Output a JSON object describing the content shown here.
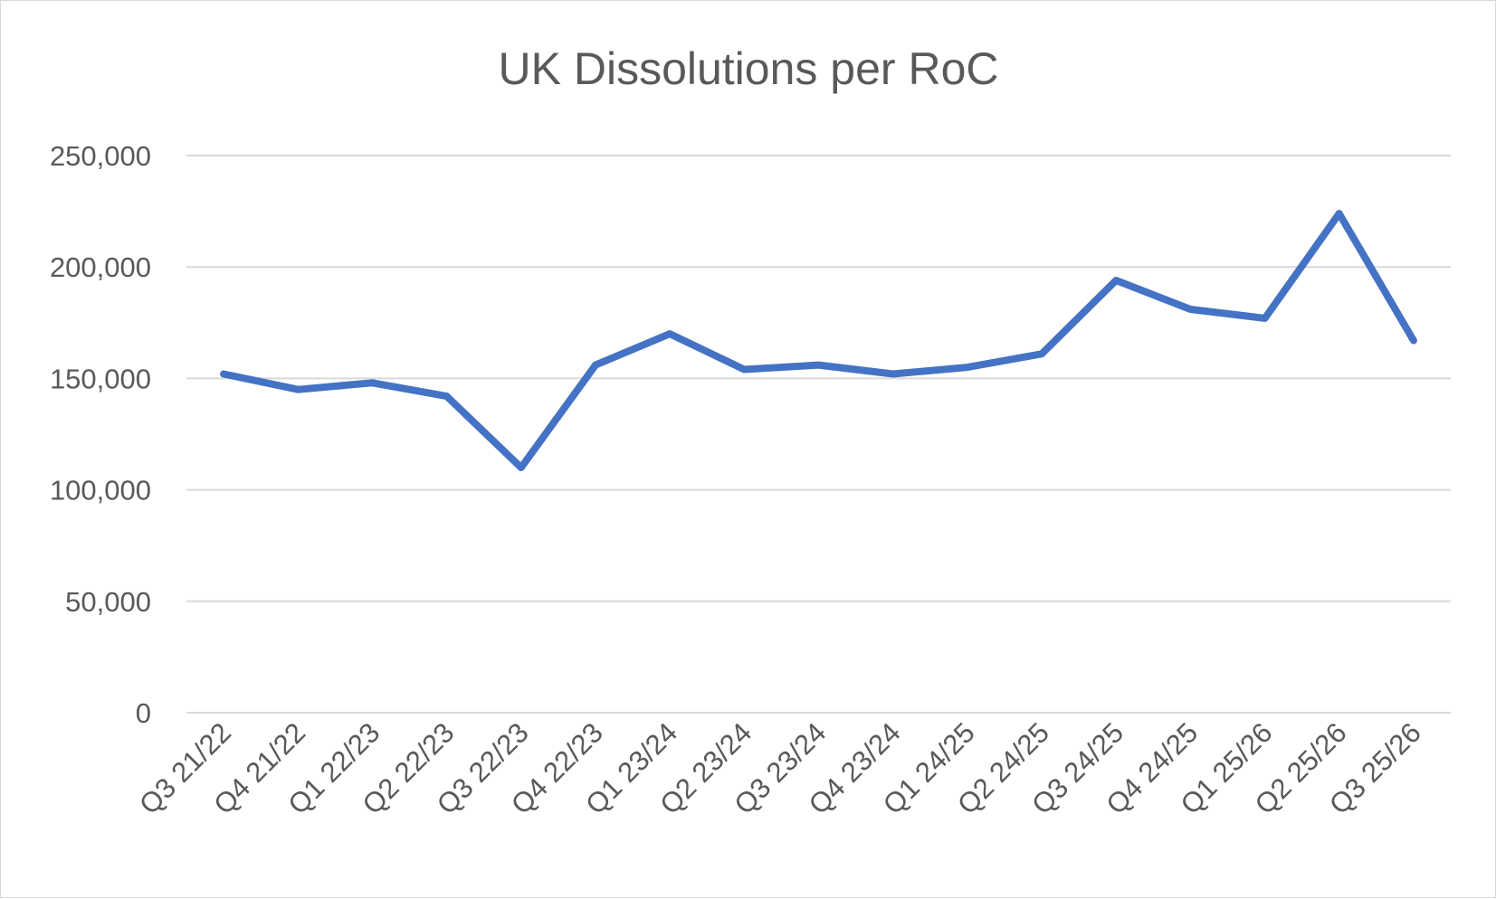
{
  "chart_data": {
    "type": "line",
    "title": "UK Dissolutions per RoC",
    "xlabel": "",
    "ylabel": "",
    "categories": [
      "Q3 21/22",
      "Q4 21/22",
      "Q1 22/23",
      "Q2 22/23",
      "Q3 22/23",
      "Q4 22/23",
      "Q1 23/24",
      "Q2 23/24",
      "Q3 23/24",
      "Q4 23/24",
      "Q1 24/25",
      "Q2 24/25",
      "Q3 24/25",
      "Q4 24/25",
      "Q1 25/26",
      "Q2 25/26",
      "Q3 25/26"
    ],
    "series": [
      {
        "color": "#4472c4",
        "values": [
          152000,
          145000,
          148000,
          142000,
          110000,
          156000,
          170000,
          154000,
          156000,
          152000,
          155000,
          161000,
          194000,
          181000,
          177000,
          224000,
          167000
        ]
      }
    ],
    "ylim": [
      0,
      250000
    ],
    "yticks": [
      0,
      50000,
      100000,
      150000,
      200000,
      250000
    ],
    "ytick_labels": [
      "0",
      "50,000",
      "100,000",
      "150,000",
      "200,000",
      "250,000"
    ],
    "grid": true,
    "legend": "none"
  }
}
